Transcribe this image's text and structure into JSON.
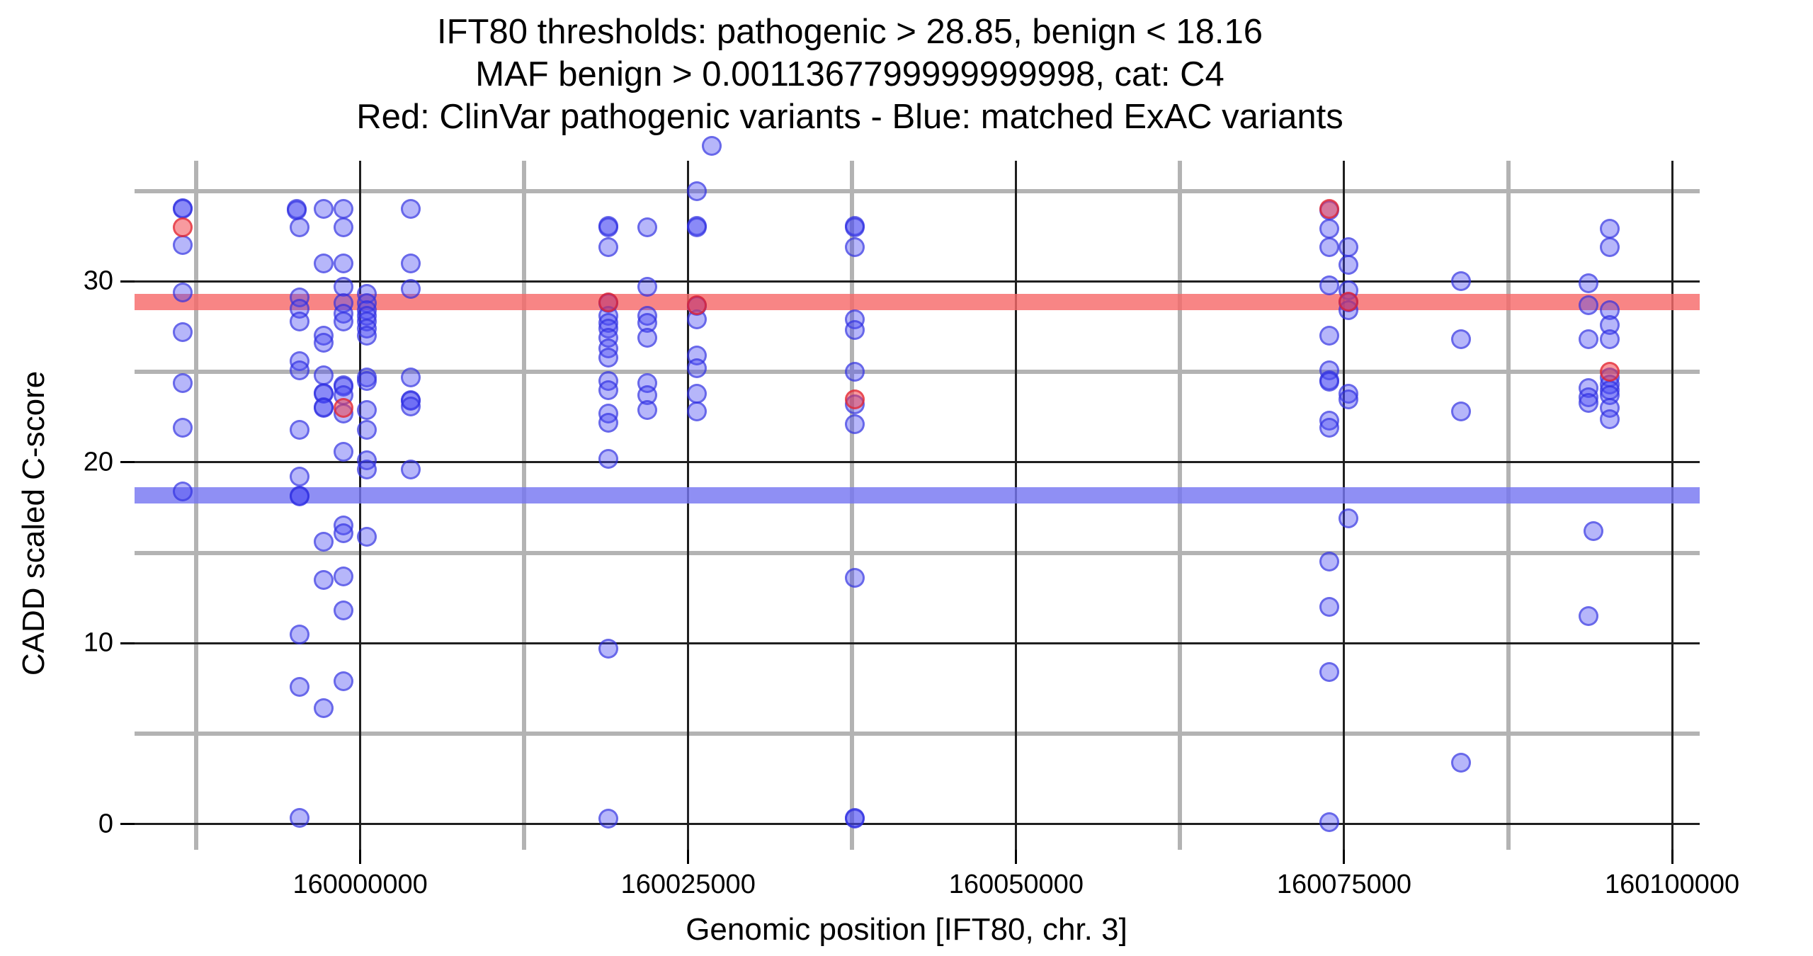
{
  "title": {
    "line1": "IFT80 thresholds: pathogenic > 28.85, benign < 18.16",
    "line2": "MAF benign > 0.0011367799999999998, cat: C4",
    "line3": "Red: ClinVar pathogenic variants - Blue: matched ExAC variants"
  },
  "axes": {
    "x_label": "Genomic position [IFT80, chr. 3]",
    "y_label": "CADD scaled C-score"
  },
  "thresholds": {
    "pathogenic_cadd": 28.85,
    "benign_cadd": 18.16,
    "maf_benign": "0.0011367799999999998",
    "category": "C4"
  },
  "legend_meaning": {
    "red": "ClinVar pathogenic variants",
    "blue": "matched ExAC variants"
  },
  "colors": {
    "red_band": "#F66A6A",
    "blue_band": "#7676F2",
    "blue_point": "#4848F2",
    "red_point": "#F23E46",
    "grid_minor": "#B3B3B3",
    "grid_major": "#1F1F1F"
  },
  "chart_data": {
    "type": "scatter",
    "title": "IFT80 thresholds: pathogenic > 28.85, benign < 18.16",
    "xlabel": "Genomic position [IFT80, chr. 3]",
    "ylabel": "CADD scaled C-score",
    "xlim": [
      159982800,
      160102100
    ],
    "ylim": [
      -1.41,
      36.67
    ],
    "grid": "major-and-minor",
    "legend_position": "none",
    "x_ticks": [
      160000000,
      160025000,
      160050000,
      160075000,
      160100000
    ],
    "x_tick_labels": [
      "160000000",
      "160025000",
      "160050000",
      "160075000",
      "160100000"
    ],
    "x_minor_ticks": [
      159987500,
      160012500,
      160037500,
      160062500,
      160087500
    ],
    "y_ticks": [
      0,
      10,
      20,
      30
    ],
    "y_tick_labels": [
      "0",
      "10",
      "20",
      "30"
    ],
    "y_minor_ticks": [
      5,
      15,
      25,
      35
    ],
    "hline_pathogenic": 28.85,
    "hline_benign": 18.16,
    "series": [
      {
        "name": "ClinVar pathogenic variants",
        "color_key": "r"
      },
      {
        "name": "matched ExAC variants",
        "color_key": "b"
      }
    ],
    "points": [
      [
        159986450,
        34.05,
        "b"
      ],
      [
        159986450,
        34.0,
        "b"
      ],
      [
        159986450,
        33.0,
        "r"
      ],
      [
        159986450,
        32.0,
        "b"
      ],
      [
        159986450,
        29.4,
        "b"
      ],
      [
        159986450,
        27.2,
        "b"
      ],
      [
        159986450,
        24.4,
        "b"
      ],
      [
        159986450,
        21.9,
        "b"
      ],
      [
        159986450,
        18.4,
        "b"
      ],
      [
        159995140,
        34.0,
        "b"
      ],
      [
        159995140,
        33.95,
        "b"
      ],
      [
        159995400,
        33.0,
        "b"
      ],
      [
        159995400,
        29.1,
        "b"
      ],
      [
        159995400,
        28.5,
        "b"
      ],
      [
        159995400,
        27.8,
        "b"
      ],
      [
        159995400,
        25.6,
        "b"
      ],
      [
        159995400,
        25.1,
        "b"
      ],
      [
        159995400,
        21.8,
        "b"
      ],
      [
        159995400,
        19.2,
        "b"
      ],
      [
        159995400,
        18.15,
        "b"
      ],
      [
        159995400,
        18.1,
        "b"
      ],
      [
        159995400,
        10.5,
        "b"
      ],
      [
        159995400,
        7.6,
        "b"
      ],
      [
        159995400,
        0.35,
        "b"
      ],
      [
        159997190,
        34.0,
        "b"
      ],
      [
        159997190,
        31.0,
        "b"
      ],
      [
        159997190,
        27.0,
        "b"
      ],
      [
        159997190,
        26.6,
        "b"
      ],
      [
        159997190,
        24.8,
        "b"
      ],
      [
        159997190,
        23.85,
        "b"
      ],
      [
        159997190,
        23.8,
        "b"
      ],
      [
        159997190,
        23.05,
        "b"
      ],
      [
        159997190,
        23.0,
        "b"
      ],
      [
        159997190,
        15.6,
        "b"
      ],
      [
        159997190,
        13.5,
        "b"
      ],
      [
        159997190,
        6.4,
        "b"
      ],
      [
        159998750,
        34.0,
        "b"
      ],
      [
        159998750,
        33.0,
        "b"
      ],
      [
        159998750,
        31.0,
        "b"
      ],
      [
        159998750,
        29.7,
        "b"
      ],
      [
        159998750,
        28.8,
        "b"
      ],
      [
        159998750,
        28.2,
        "b"
      ],
      [
        159998750,
        27.8,
        "b"
      ],
      [
        159998750,
        24.25,
        "b"
      ],
      [
        159998750,
        24.2,
        "b"
      ],
      [
        159998750,
        23.7,
        "b"
      ],
      [
        159998750,
        23.0,
        "r"
      ],
      [
        159998750,
        22.7,
        "b"
      ],
      [
        159998750,
        20.6,
        "b"
      ],
      [
        159998750,
        16.5,
        "b"
      ],
      [
        159998750,
        16.1,
        "b"
      ],
      [
        159998750,
        13.7,
        "b"
      ],
      [
        159998750,
        11.8,
        "b"
      ],
      [
        159998750,
        7.9,
        "b"
      ],
      [
        160000500,
        29.3,
        "b"
      ],
      [
        160000500,
        28.8,
        "b"
      ],
      [
        160000500,
        28.4,
        "b"
      ],
      [
        160000500,
        28.1,
        "b"
      ],
      [
        160000500,
        27.8,
        "b"
      ],
      [
        160000500,
        27.4,
        "b"
      ],
      [
        160000500,
        27.0,
        "b"
      ],
      [
        160000500,
        24.7,
        "b"
      ],
      [
        160000500,
        24.5,
        "b"
      ],
      [
        160000500,
        22.9,
        "b"
      ],
      [
        160000500,
        21.8,
        "b"
      ],
      [
        160000500,
        20.1,
        "b"
      ],
      [
        160000500,
        19.6,
        "b"
      ],
      [
        160000500,
        15.9,
        "b"
      ],
      [
        160003830,
        34.0,
        "b"
      ],
      [
        160003830,
        31.0,
        "b"
      ],
      [
        160003830,
        29.6,
        "b"
      ],
      [
        160003830,
        24.7,
        "b"
      ],
      [
        160003830,
        23.45,
        "b"
      ],
      [
        160003830,
        23.4,
        "b"
      ],
      [
        160003830,
        23.1,
        "b"
      ],
      [
        160003830,
        19.6,
        "b"
      ],
      [
        160018900,
        33.05,
        "b"
      ],
      [
        160018900,
        33.0,
        "b"
      ],
      [
        160018900,
        31.9,
        "b"
      ],
      [
        160018900,
        28.85,
        "r"
      ],
      [
        160018900,
        28.8,
        "b"
      ],
      [
        160018900,
        28.1,
        "b"
      ],
      [
        160018900,
        27.7,
        "b"
      ],
      [
        160018900,
        27.4,
        "b"
      ],
      [
        160018900,
        26.9,
        "b"
      ],
      [
        160018900,
        26.3,
        "b"
      ],
      [
        160018900,
        25.8,
        "b"
      ],
      [
        160018900,
        24.5,
        "b"
      ],
      [
        160018900,
        24.0,
        "b"
      ],
      [
        160018900,
        22.7,
        "b"
      ],
      [
        160018900,
        22.2,
        "b"
      ],
      [
        160018900,
        20.2,
        "b"
      ],
      [
        160018900,
        9.7,
        "b"
      ],
      [
        160018900,
        0.3,
        "b"
      ],
      [
        160021870,
        33.0,
        "b"
      ],
      [
        160021870,
        29.7,
        "b"
      ],
      [
        160021870,
        28.1,
        "b"
      ],
      [
        160021870,
        27.7,
        "b"
      ],
      [
        160021870,
        26.9,
        "b"
      ],
      [
        160021870,
        24.4,
        "b"
      ],
      [
        160021870,
        23.7,
        "b"
      ],
      [
        160021870,
        22.9,
        "b"
      ],
      [
        160025650,
        35.0,
        "b"
      ],
      [
        160025650,
        33.05,
        "b"
      ],
      [
        160025650,
        33.0,
        "b"
      ],
      [
        160025650,
        28.7,
        "r"
      ],
      [
        160025650,
        28.65,
        "b"
      ],
      [
        160025650,
        27.9,
        "b"
      ],
      [
        160025650,
        25.9,
        "b"
      ],
      [
        160025650,
        25.2,
        "b"
      ],
      [
        160025650,
        23.8,
        "b"
      ],
      [
        160025650,
        22.8,
        "b"
      ],
      [
        160026780,
        37.5,
        "b"
      ],
      [
        160037690,
        33.05,
        "b"
      ],
      [
        160037690,
        33.0,
        "b"
      ],
      [
        160037690,
        31.9,
        "b"
      ],
      [
        160037690,
        27.9,
        "b"
      ],
      [
        160037690,
        27.3,
        "b"
      ],
      [
        160037690,
        25.0,
        "b"
      ],
      [
        160037690,
        23.5,
        "r"
      ],
      [
        160037690,
        23.2,
        "b"
      ],
      [
        160037690,
        22.1,
        "b"
      ],
      [
        160037690,
        13.6,
        "b"
      ],
      [
        160037690,
        0.35,
        "b"
      ],
      [
        160037690,
        0.3,
        "b"
      ],
      [
        160073870,
        34.0,
        "r"
      ],
      [
        160073870,
        33.95,
        "b"
      ],
      [
        160073870,
        32.9,
        "b"
      ],
      [
        160073870,
        31.9,
        "b"
      ],
      [
        160073870,
        29.8,
        "b"
      ],
      [
        160073870,
        27.0,
        "b"
      ],
      [
        160073870,
        25.1,
        "b"
      ],
      [
        160073870,
        24.55,
        "b"
      ],
      [
        160073870,
        24.45,
        "b"
      ],
      [
        160073870,
        22.3,
        "b"
      ],
      [
        160073870,
        21.9,
        "b"
      ],
      [
        160073870,
        14.5,
        "b"
      ],
      [
        160073870,
        12.0,
        "b"
      ],
      [
        160073870,
        8.4,
        "b"
      ],
      [
        160073870,
        0.1,
        "b"
      ],
      [
        160075330,
        31.9,
        "b"
      ],
      [
        160075330,
        30.9,
        "b"
      ],
      [
        160075330,
        29.5,
        "b"
      ],
      [
        160075330,
        28.9,
        "r"
      ],
      [
        160075330,
        28.85,
        "b"
      ],
      [
        160075330,
        28.4,
        "b"
      ],
      [
        160075330,
        23.8,
        "b"
      ],
      [
        160075330,
        23.5,
        "b"
      ],
      [
        160075330,
        16.9,
        "b"
      ],
      [
        160083920,
        30.0,
        "b"
      ],
      [
        160083920,
        26.8,
        "b"
      ],
      [
        160083920,
        22.8,
        "b"
      ],
      [
        160083920,
        3.4,
        "b"
      ],
      [
        160093640,
        29.9,
        "b"
      ],
      [
        160093640,
        28.7,
        "b"
      ],
      [
        160093640,
        26.8,
        "b"
      ],
      [
        160093640,
        24.1,
        "b"
      ],
      [
        160093640,
        23.6,
        "b"
      ],
      [
        160093640,
        23.3,
        "b"
      ],
      [
        160093640,
        11.5,
        "b"
      ],
      [
        160094010,
        16.2,
        "b"
      ],
      [
        160095260,
        32.9,
        "b"
      ],
      [
        160095260,
        31.9,
        "b"
      ],
      [
        160095260,
        28.4,
        "b"
      ],
      [
        160095260,
        27.6,
        "b"
      ],
      [
        160095260,
        26.8,
        "b"
      ],
      [
        160095260,
        25.0,
        "r"
      ],
      [
        160095260,
        24.7,
        "b"
      ],
      [
        160095260,
        24.3,
        "b"
      ],
      [
        160095260,
        24.0,
        "b"
      ],
      [
        160095260,
        23.7,
        "b"
      ],
      [
        160095260,
        23.0,
        "b"
      ],
      [
        160095260,
        22.4,
        "b"
      ]
    ]
  }
}
